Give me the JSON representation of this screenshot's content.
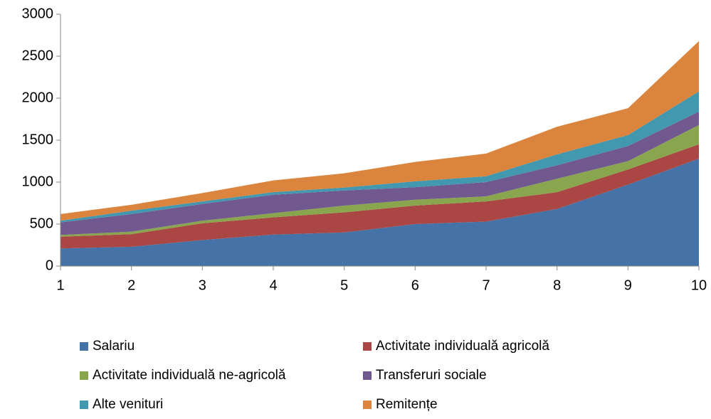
{
  "chart_data": {
    "type": "stacked_area",
    "categories": [
      1,
      2,
      3,
      4,
      5,
      6,
      7,
      8,
      9,
      10
    ],
    "series": [
      {
        "name": "Salariu",
        "color": "#4572A7",
        "values": [
          210,
          230,
          310,
          375,
          400,
          500,
          530,
          680,
          970,
          1280
        ]
      },
      {
        "name": "Activitate individuală agricolă",
        "color": "#AA4643",
        "values": [
          140,
          150,
          200,
          205,
          240,
          220,
          240,
          200,
          180,
          170
        ]
      },
      {
        "name": "Activitate individuală ne-agricolă",
        "color": "#89A54E",
        "values": [
          20,
          30,
          30,
          50,
          80,
          70,
          60,
          160,
          100,
          230
        ]
      },
      {
        "name": "Transferuri sociale",
        "color": "#71588F",
        "values": [
          150,
          210,
          200,
          220,
          180,
          150,
          170,
          160,
          180,
          160
        ]
      },
      {
        "name": "Alte venituri",
        "color": "#4198AF",
        "values": [
          20,
          40,
          30,
          30,
          35,
          70,
          70,
          130,
          130,
          240
        ]
      },
      {
        "name": "Remitențe",
        "color": "#DB843D",
        "values": [
          80,
          70,
          100,
          140,
          170,
          230,
          270,
          330,
          320,
          600
        ]
      }
    ],
    "ylim": [
      0,
      3000
    ],
    "yticks": [
      0,
      500,
      1000,
      1500,
      2000,
      2500,
      3000
    ],
    "legend": "bottom"
  }
}
